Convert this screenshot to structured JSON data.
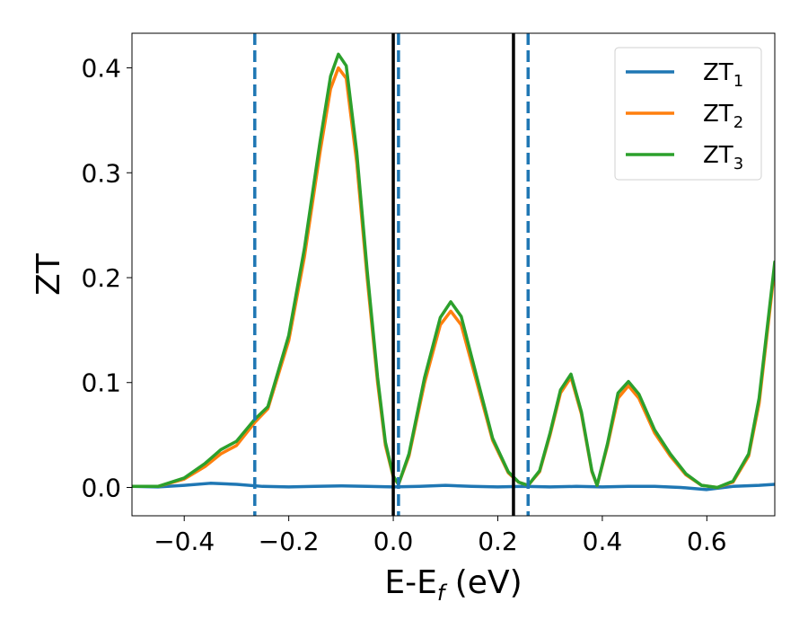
{
  "chart_data": {
    "type": "line",
    "xlabel": "E-E",
    "xlabel_sub": "f",
    "xlabel_unit": " (eV)",
    "ylabel": "ZT",
    "xlim": [
      -0.5,
      0.73
    ],
    "ylim": [
      -0.027,
      0.433
    ],
    "x_ticks": [
      -0.4,
      -0.2,
      0.0,
      0.2,
      0.4,
      0.6
    ],
    "x_tick_labels": [
      "−0.4",
      "−0.2",
      "0.0",
      "0.2",
      "0.4",
      "0.6"
    ],
    "y_ticks": [
      0.0,
      0.1,
      0.2,
      0.3,
      0.4
    ],
    "y_tick_labels": [
      "0.0",
      "0.1",
      "0.2",
      "0.3",
      "0.4"
    ],
    "grid": false,
    "legend_position": "top-right",
    "vlines_solid": [
      0.0,
      0.23
    ],
    "vlines_dashed": [
      -0.265,
      0.01,
      0.258
    ],
    "vline_solid_color": "#000000",
    "vline_dashed_color": "#1f77b4",
    "series": [
      {
        "name": "ZT",
        "name_sub": "1",
        "color": "#1f77b4",
        "x": [
          -0.5,
          -0.45,
          -0.4,
          -0.35,
          -0.3,
          -0.25,
          -0.2,
          -0.15,
          -0.1,
          -0.05,
          0.0,
          0.05,
          0.1,
          0.15,
          0.2,
          0.25,
          0.3,
          0.35,
          0.4,
          0.45,
          0.5,
          0.55,
          0.6,
          0.65,
          0.7,
          0.73
        ],
        "y": [
          0.001,
          0.0005,
          0.002,
          0.004,
          0.003,
          0.001,
          0.0005,
          0.001,
          0.0015,
          0.001,
          0.0005,
          0.001,
          0.002,
          0.001,
          0.0005,
          0.001,
          0.0005,
          0.001,
          0.0005,
          0.001,
          0.001,
          0.0,
          -0.002,
          0.001,
          0.002,
          0.003
        ]
      },
      {
        "name": "ZT",
        "name_sub": "2",
        "color": "#ff7f0e",
        "x": [
          -0.5,
          -0.45,
          -0.4,
          -0.36,
          -0.33,
          -0.3,
          -0.265,
          -0.24,
          -0.2,
          -0.17,
          -0.14,
          -0.12,
          -0.105,
          -0.09,
          -0.07,
          -0.05,
          -0.03,
          -0.015,
          0.0,
          0.01,
          0.03,
          0.06,
          0.09,
          0.11,
          0.13,
          0.16,
          0.19,
          0.22,
          0.24,
          0.258,
          0.28,
          0.3,
          0.32,
          0.34,
          0.36,
          0.38,
          0.39,
          0.41,
          0.43,
          0.45,
          0.47,
          0.5,
          0.53,
          0.56,
          0.59,
          0.62,
          0.65,
          0.68,
          0.7,
          0.73
        ],
        "y": [
          0.001,
          0.001,
          0.008,
          0.02,
          0.032,
          0.04,
          0.062,
          0.075,
          0.14,
          0.22,
          0.32,
          0.38,
          0.4,
          0.39,
          0.31,
          0.2,
          0.1,
          0.04,
          0.01,
          0.003,
          0.03,
          0.1,
          0.155,
          0.168,
          0.155,
          0.1,
          0.045,
          0.014,
          0.005,
          0.002,
          0.015,
          0.05,
          0.09,
          0.105,
          0.07,
          0.015,
          0.002,
          0.04,
          0.085,
          0.097,
          0.085,
          0.052,
          0.03,
          0.012,
          0.002,
          0.0,
          0.005,
          0.03,
          0.08,
          0.21
        ]
      },
      {
        "name": "ZT",
        "name_sub": "3",
        "color": "#2ca02c",
        "x": [
          -0.5,
          -0.45,
          -0.4,
          -0.36,
          -0.33,
          -0.3,
          -0.265,
          -0.24,
          -0.2,
          -0.17,
          -0.14,
          -0.12,
          -0.105,
          -0.09,
          -0.07,
          -0.05,
          -0.03,
          -0.015,
          0.0,
          0.01,
          0.03,
          0.06,
          0.09,
          0.11,
          0.13,
          0.16,
          0.19,
          0.22,
          0.24,
          0.258,
          0.28,
          0.3,
          0.32,
          0.34,
          0.36,
          0.38,
          0.39,
          0.41,
          0.43,
          0.45,
          0.47,
          0.5,
          0.53,
          0.56,
          0.59,
          0.62,
          0.65,
          0.68,
          0.7,
          0.73
        ],
        "y": [
          0.001,
          0.001,
          0.009,
          0.023,
          0.036,
          0.044,
          0.065,
          0.077,
          0.145,
          0.228,
          0.33,
          0.392,
          0.413,
          0.402,
          0.32,
          0.207,
          0.105,
          0.043,
          0.011,
          0.003,
          0.032,
          0.105,
          0.162,
          0.177,
          0.163,
          0.105,
          0.047,
          0.015,
          0.005,
          0.002,
          0.016,
          0.052,
          0.093,
          0.108,
          0.072,
          0.016,
          0.002,
          0.042,
          0.09,
          0.101,
          0.089,
          0.055,
          0.032,
          0.013,
          0.002,
          0.0,
          0.006,
          0.032,
          0.085,
          0.215
        ]
      }
    ]
  }
}
